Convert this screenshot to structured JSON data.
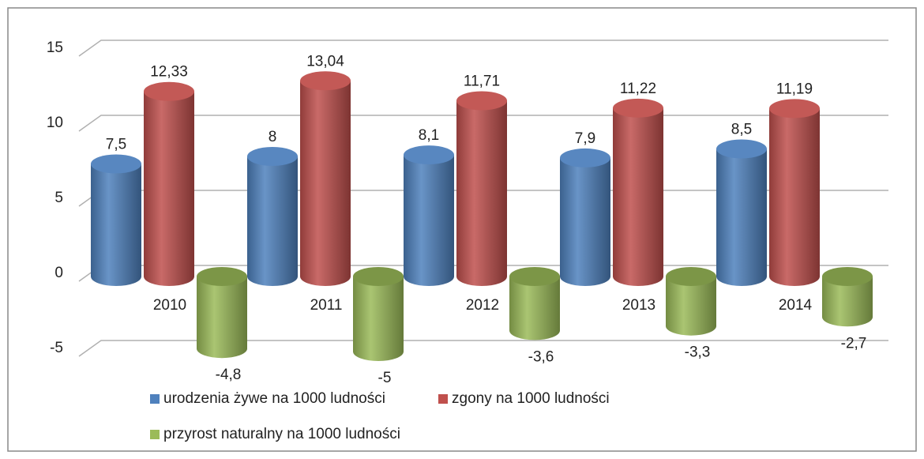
{
  "chart_data": {
    "type": "bar3d",
    "categories": [
      "2010",
      "2011",
      "2012",
      "2013",
      "2014"
    ],
    "series": [
      {
        "name": "urodzenia żywe na 1000 ludności",
        "color": "#4f81bd",
        "values": [
          7.5,
          8,
          8.1,
          7.9,
          8.5
        ],
        "value_labels": [
          "7,5",
          "8",
          "8,1",
          "7,9",
          "8,5"
        ]
      },
      {
        "name": "zgony na 1000 ludności",
        "color": "#c0504d",
        "values": [
          12.33,
          13.04,
          11.71,
          11.22,
          11.19
        ],
        "value_labels": [
          "12,33",
          "13,04",
          "11,71",
          "11,22",
          "11,19"
        ]
      },
      {
        "name": "przyrost naturalny na 1000 ludności",
        "color": "#9bbb59",
        "values": [
          -4.8,
          -5,
          -3.6,
          -3.3,
          -2.7
        ],
        "value_labels": [
          "-4,8",
          "-5",
          "-3,6",
          "-3,3",
          "-2,7"
        ]
      }
    ],
    "ylim": [
      -5,
      15
    ],
    "yticks": [
      -5,
      0,
      5,
      10,
      15
    ],
    "grid": true
  }
}
